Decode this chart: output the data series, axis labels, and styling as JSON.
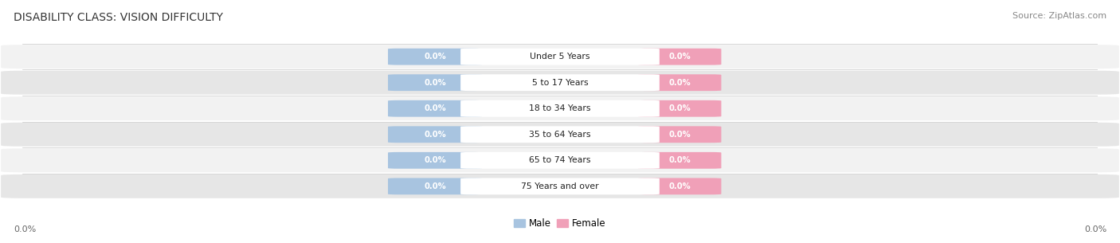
{
  "title": "DISABILITY CLASS: VISION DIFFICULTY",
  "source": "Source: ZipAtlas.com",
  "categories": [
    "Under 5 Years",
    "5 to 17 Years",
    "18 to 34 Years",
    "35 to 64 Years",
    "65 to 74 Years",
    "75 Years and over"
  ],
  "male_values": [
    0.0,
    0.0,
    0.0,
    0.0,
    0.0,
    0.0
  ],
  "female_values": [
    0.0,
    0.0,
    0.0,
    0.0,
    0.0,
    0.0
  ],
  "male_color": "#a8c4e0",
  "female_color": "#f0a0b8",
  "male_label": "Male",
  "female_label": "Female",
  "row_bg_color_light": "#f2f2f2",
  "row_bg_color_dark": "#e6e6e6",
  "title_fontsize": 10,
  "source_fontsize": 8,
  "axis_label_value_left": "0.0%",
  "axis_label_value_right": "0.0%",
  "background_color": "#ffffff"
}
